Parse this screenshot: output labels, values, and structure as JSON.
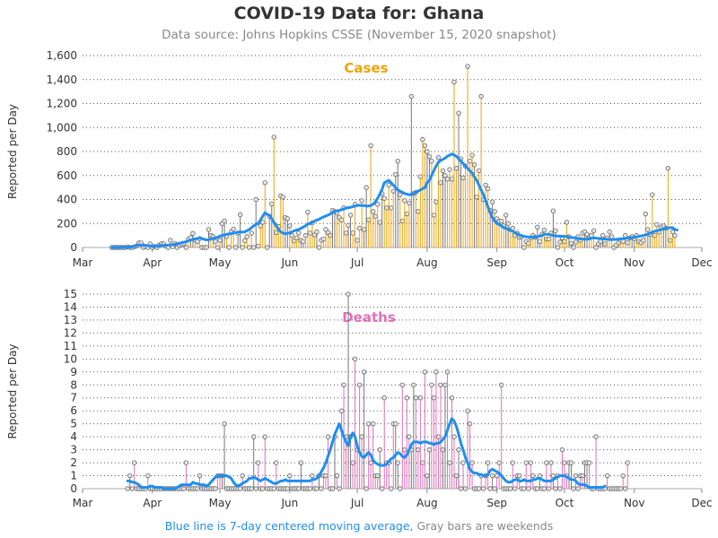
{
  "title": "COVID-19 Data for: Ghana",
  "subtitle": "Data source: Johns Hopkins CSSE (November 15, 2020 snapshot)",
  "footnote": {
    "part1": "Blue line is 7-day centered moving average,",
    "part2": "Gray bars are weekends"
  },
  "colors": {
    "cases": "#f0a30a",
    "deaths": "#e070b8",
    "weekend": "#777777",
    "average": "#1f8ef1",
    "grid": "#555555"
  },
  "chart_data": [
    {
      "type": "bar",
      "title": "Cases",
      "ylabel": "Reported per Day",
      "xlim": [
        "2020-03-01",
        "2020-12-01"
      ],
      "x_ticks": [
        "Mar",
        "Apr",
        "May",
        "Jun",
        "Jul",
        "Aug",
        "Sep",
        "Oct",
        "Nov",
        "Dec"
      ],
      "ylim": [
        0,
        1600
      ],
      "y_ticks": [
        "0",
        "200",
        "400",
        "600",
        "800",
        "1,000",
        "1,200",
        "1,400",
        "1,600"
      ],
      "y_tick_values": [
        0,
        200,
        400,
        600,
        800,
        1000,
        1200,
        1400,
        1600
      ],
      "grid": "horizontal dotted",
      "start_date": "2020-03-14",
      "weekend_start_date": "2020-03-14",
      "values": [
        0,
        0,
        1,
        0,
        0,
        0,
        0,
        5,
        0,
        0,
        5,
        12,
        38,
        38,
        0,
        7,
        0,
        30,
        0,
        10,
        0,
        20,
        31,
        30,
        12,
        0,
        60,
        7,
        33,
        0,
        17,
        25,
        33,
        0,
        70,
        83,
        117,
        61,
        50,
        74,
        0,
        0,
        0,
        150,
        100,
        90,
        50,
        0,
        60,
        200,
        221,
        92,
        0,
        130,
        153,
        0,
        120,
        274,
        0,
        57,
        90,
        0,
        120,
        0,
        400,
        11,
        180,
        210,
        540,
        0,
        260,
        364,
        920,
        125,
        175,
        430,
        420,
        250,
        240,
        180,
        100,
        55,
        80,
        120,
        60,
        50,
        100,
        295,
        120,
        205,
        105,
        130,
        0,
        60,
        70,
        150,
        125,
        100,
        310,
        300,
        290,
        250,
        230,
        330,
        120,
        185,
        270,
        120,
        360,
        60,
        160,
        390,
        150,
        500,
        230,
        850,
        300,
        260,
        360,
        210,
        450,
        410,
        330,
        520,
        330,
        470,
        610,
        720,
        440,
        220,
        390,
        280,
        370,
        1260,
        450,
        460,
        300,
        590,
        900,
        850,
        800,
        760,
        720,
        270,
        380,
        750,
        540,
        640,
        600,
        570,
        650,
        570,
        1380,
        660,
        1120,
        740,
        580,
        680,
        1510,
        720,
        770,
        690,
        420,
        640,
        1260,
        400,
        520,
        490,
        310,
        380,
        300,
        240,
        220,
        220,
        180,
        270,
        200,
        150,
        160,
        100,
        120,
        85,
        90,
        0,
        50,
        35,
        80,
        100,
        85,
        170,
        50,
        110,
        145,
        70,
        70,
        120,
        305,
        140,
        0,
        45,
        80,
        50,
        210,
        90,
        35,
        0,
        45,
        90,
        60,
        120,
        130,
        110,
        80,
        100,
        140,
        0,
        30,
        50,
        100,
        30,
        80,
        130,
        90,
        0,
        20,
        40,
        60,
        50,
        100,
        40,
        80,
        90,
        75,
        100,
        50,
        40,
        60,
        280,
        150,
        110,
        440,
        100,
        190,
        130,
        170,
        180,
        160,
        660,
        60,
        130,
        100
      ],
      "average": [
        0,
        0,
        1,
        1,
        1,
        2,
        2,
        4,
        3,
        5,
        10,
        15,
        20,
        20,
        21,
        18,
        14,
        13,
        10,
        10,
        10,
        15,
        18,
        17,
        18,
        20,
        23,
        22,
        27,
        30,
        35,
        40,
        44,
        48,
        55,
        62,
        67,
        72,
        75,
        82,
        75,
        68,
        63,
        65,
        70,
        75,
        80,
        85,
        95,
        100,
        105,
        110,
        113,
        115,
        120,
        123,
        127,
        130,
        128,
        130,
        140,
        150,
        165,
        180,
        195,
        200,
        230,
        260,
        290,
        275,
        270,
        240,
        210,
        180,
        150,
        130,
        120,
        115,
        118,
        122,
        130,
        140,
        145,
        150,
        160,
        170,
        180,
        195,
        200,
        210,
        220,
        228,
        235,
        245,
        255,
        262,
        270,
        280,
        290,
        300,
        305,
        310,
        315,
        320,
        328,
        332,
        335,
        340,
        345,
        350,
        352,
        350,
        350,
        345,
        346,
        350,
        360,
        380,
        410,
        445,
        485,
        540,
        550,
        560,
        540,
        520,
        500,
        480,
        470,
        460,
        450,
        445,
        440,
        442,
        450,
        460,
        470,
        480,
        490,
        500,
        540,
        560,
        600,
        640,
        680,
        710,
        725,
        735,
        745,
        760,
        770,
        780,
        770,
        760,
        740,
        720,
        700,
        680,
        660,
        640,
        620,
        590,
        560,
        520,
        480,
        440,
        390,
        340,
        290,
        250,
        220,
        200,
        190,
        180,
        165,
        160,
        150,
        145,
        135,
        125,
        115,
        105,
        98,
        93,
        90,
        88,
        87,
        86,
        87,
        88,
        95,
        100,
        110,
        110,
        108,
        105,
        100,
        97,
        95,
        94,
        93,
        95,
        90,
        86,
        83,
        81,
        80,
        75,
        72,
        70,
        68,
        70,
        75,
        78,
        80,
        78,
        76,
        74,
        72,
        70,
        68,
        66,
        65,
        66,
        68,
        70,
        72,
        74,
        76,
        78,
        80,
        82,
        85,
        88,
        92,
        96,
        100,
        105,
        110,
        120,
        128,
        135,
        140,
        145,
        150,
        155,
        160,
        162,
        165,
        165,
        150,
        145
      ]
    },
    {
      "type": "bar",
      "title": "Deaths",
      "ylabel": "Reported per Day",
      "xlim": [
        "2020-03-01",
        "2020-12-01"
      ],
      "x_ticks": [
        "Mar",
        "Apr",
        "May",
        "Jun",
        "Jul",
        "Aug",
        "Sep",
        "Oct",
        "Nov",
        "Dec"
      ],
      "ylim": [
        0,
        15
      ],
      "y_ticks": [
        "0",
        "1",
        "2",
        "3",
        "4",
        "5",
        "6",
        "7",
        "8",
        "9",
        "10",
        "11",
        "12",
        "13",
        "14",
        "15"
      ],
      "y_tick_values": [
        0,
        1,
        2,
        3,
        4,
        5,
        6,
        7,
        8,
        9,
        10,
        11,
        12,
        13,
        14,
        15
      ],
      "grid": "horizontal dotted",
      "start_date": "2020-03-21",
      "weekend_start_date": "2020-03-21",
      "values": [
        0,
        1,
        0,
        2,
        0,
        0,
        0,
        0,
        0,
        1,
        0,
        0,
        0,
        0,
        0,
        0,
        0,
        0,
        0,
        0,
        0,
        0,
        0,
        0,
        0,
        0,
        2,
        0,
        0,
        0,
        0,
        0,
        1,
        0,
        0,
        0,
        0,
        0,
        0,
        0,
        1,
        1,
        1,
        5,
        0,
        0,
        0,
        0,
        0,
        0,
        0,
        1,
        0,
        0,
        0,
        0,
        4,
        0,
        2,
        0,
        0,
        4,
        0,
        0,
        0,
        0,
        2,
        0,
        0,
        0,
        0,
        0,
        1,
        0,
        0,
        0,
        0,
        2,
        0,
        0,
        0,
        0,
        1,
        0,
        0,
        1,
        0,
        1,
        1,
        4,
        0,
        0,
        4,
        1,
        0,
        6,
        8,
        4,
        15,
        4,
        2,
        10,
        3,
        8,
        4,
        9,
        0,
        5,
        2,
        5,
        1,
        1,
        3,
        0,
        7,
        2,
        2,
        0,
        5,
        5,
        2,
        0,
        8,
        3,
        7,
        4,
        3,
        8,
        7,
        3,
        7,
        2,
        9,
        1,
        3,
        8,
        7,
        9,
        4,
        8,
        3,
        8,
        9,
        2,
        7,
        4,
        1,
        3,
        0,
        2,
        0,
        6,
        5,
        2,
        0,
        0,
        0,
        1,
        0,
        1,
        2,
        0,
        1,
        0,
        1,
        2,
        8,
        0,
        0,
        0,
        0,
        2,
        0,
        1,
        1,
        0,
        0,
        2,
        0,
        2,
        1,
        0,
        0,
        1,
        0,
        0,
        2,
        0,
        2,
        1,
        0,
        1,
        0,
        3,
        2,
        1,
        2,
        2,
        0,
        1,
        0,
        1,
        1,
        2,
        2,
        2,
        0,
        0,
        4,
        0,
        0,
        0,
        0,
        1,
        0,
        0,
        0,
        0,
        0,
        0,
        1,
        0,
        2
      ],
      "average": [
        0.6,
        0.6,
        0.5,
        0.5,
        0.4,
        0.3,
        0.1,
        0.1,
        0.1,
        0.1,
        0.2,
        0.2,
        0.1,
        0.1,
        0.1,
        0.1,
        0,
        0,
        0,
        0,
        0,
        0,
        0.1,
        0.2,
        0.3,
        0.3,
        0.3,
        0.3,
        0.3,
        0.5,
        0.4,
        0.4,
        0.3,
        0.3,
        0.3,
        0.2,
        0.3,
        0.5,
        0.7,
        0.9,
        1.0,
        1.0,
        1.0,
        1.0,
        1.0,
        0.9,
        0.8,
        0.5,
        0.3,
        0.2,
        0.3,
        0.4,
        0.5,
        0.6,
        0.8,
        0.8,
        0.9,
        0.8,
        0.7,
        0.6,
        0.7,
        0.8,
        0.7,
        0.6,
        0.5,
        0.4,
        0.4,
        0.5,
        0.6,
        0.6,
        0.7,
        0.6,
        0.6,
        0.6,
        0.6,
        0.6,
        0.6,
        0.6,
        0.6,
        0.6,
        0.6,
        0.6,
        0.7,
        0.7,
        0.8,
        1.0,
        1.3,
        1.6,
        2.0,
        2.5,
        3.0,
        3.6,
        4.2,
        4.6,
        5.0,
        4.5,
        4.0,
        3.6,
        3.3,
        4.0,
        4.3,
        4.0,
        3.3,
        2.8,
        2.5,
        2.4,
        2.6,
        2.8,
        2.6,
        2.2,
        2.0,
        1.9,
        1.8,
        1.8,
        1.8,
        1.9,
        2.1,
        2.3,
        2.4,
        2.6,
        2.8,
        2.7,
        2.5,
        2.4,
        2.6,
        3.0,
        3.4,
        3.6,
        3.6,
        3.6,
        3.5,
        3.6,
        3.6,
        3.6,
        3.5,
        3.5,
        3.4,
        3.5,
        3.5,
        3.6,
        3.8,
        4.0,
        4.5,
        5.0,
        5.4,
        5.2,
        4.8,
        4.2,
        3.5,
        3.0,
        2.4,
        2.0,
        1.5,
        1.3,
        1.2,
        1.2,
        1.1,
        1.1,
        1.0,
        1.0,
        1.1,
        1.4,
        1.5,
        1.4,
        1.3,
        1.2,
        1.0,
        0.8,
        0.6,
        0.5,
        0.5,
        0.6,
        0.7,
        0.7,
        0.6,
        0.6,
        0.7,
        0.6,
        0.6,
        0.6,
        0.7,
        0.7,
        0.8,
        0.8,
        0.7,
        0.6,
        0.6,
        0.6,
        0.6,
        0.7,
        0.8,
        0.9,
        1.0,
        1.0,
        1.0,
        0.9,
        0.8,
        0.7,
        0.7,
        0.6,
        0.4,
        0.3,
        0.3,
        0.3,
        0.2,
        0.1,
        0.1,
        0.1,
        0.1,
        0.1,
        0.1,
        0.1,
        0.2
      ]
    }
  ]
}
